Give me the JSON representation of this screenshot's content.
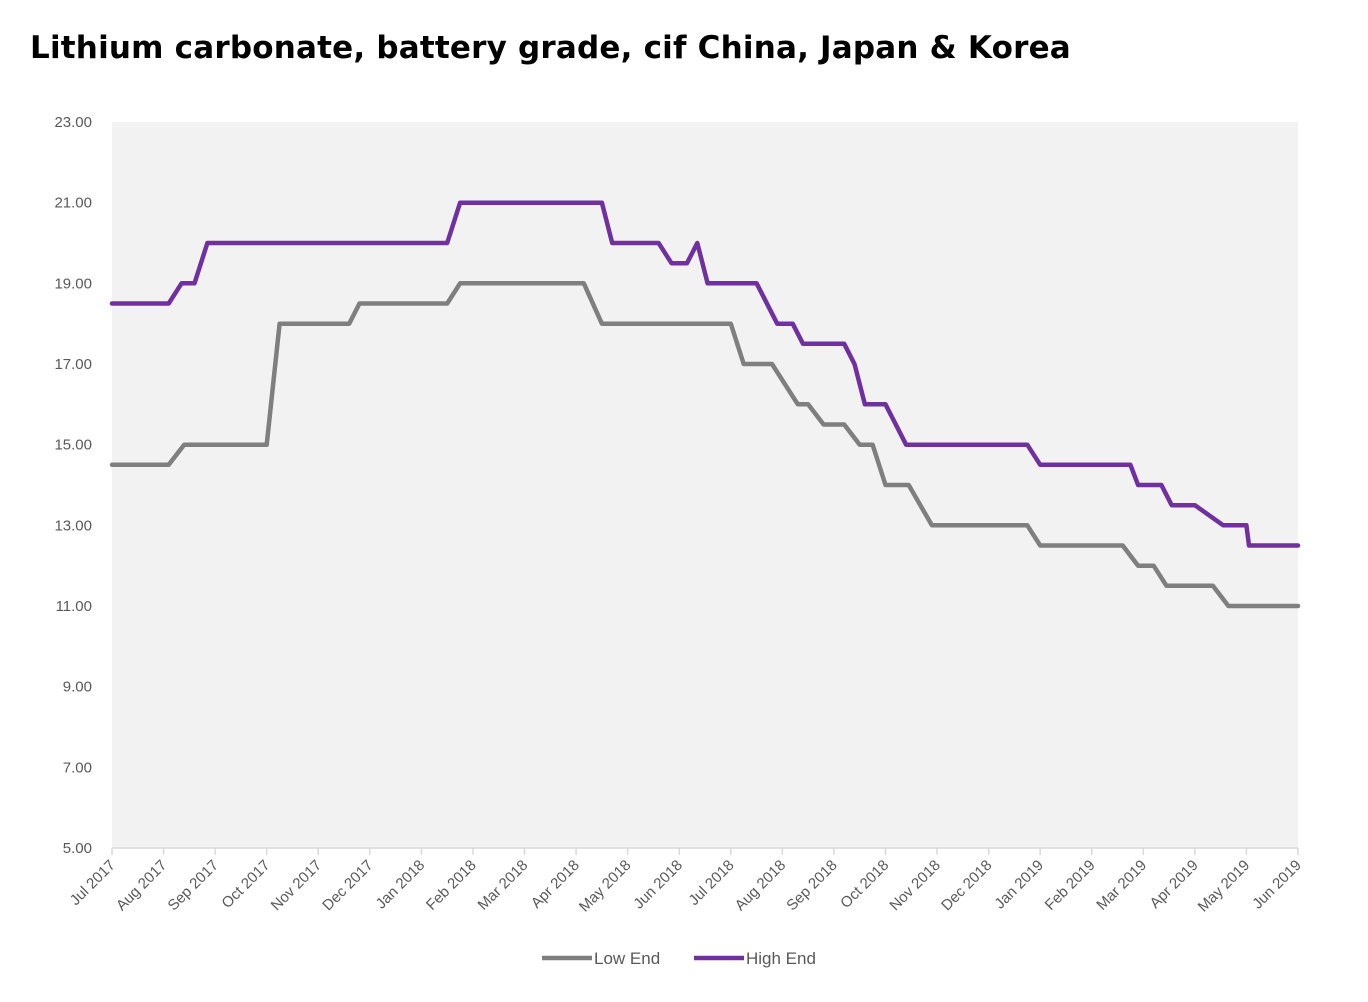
{
  "chart_data": {
    "type": "line",
    "title": "Lithium carbonate, battery grade, cif China, Japan & Korea",
    "xlabel": "",
    "ylabel": "",
    "ylim": [
      5,
      23
    ],
    "yticks": [
      "5.00",
      "7.00",
      "9.00",
      "11.00",
      "13.00",
      "15.00",
      "17.00",
      "19.00",
      "21.00",
      "23.00"
    ],
    "categories": [
      "Jul 2017",
      "Aug 2017",
      "Sep 2017",
      "Oct 2017",
      "Nov 2017",
      "Dec 2017",
      "Jan 2018",
      "Feb 2018",
      "Mar 2018",
      "Apr 2018",
      "May 2018",
      "Jun 2018",
      "Jul 2018",
      "Aug 2018",
      "Sep 2018",
      "Oct 2018",
      "Nov 2018",
      "Dec 2018",
      "Jan 2019",
      "Feb 2019",
      "Mar 2019",
      "Apr 2019",
      "May 2019",
      "Jun 2019"
    ],
    "legend_position": "bottom",
    "grid": false,
    "series": [
      {
        "name": "Low End",
        "color": "#7f7f7f",
        "x": [
          0,
          1.1,
          1.4,
          2.8,
          3.0,
          3.25,
          3.5,
          4.6,
          4.8,
          5.0,
          6.5,
          6.75,
          7.0,
          9.15,
          9.5,
          12.0,
          12.25,
          12.5,
          12.8,
          13.3,
          13.5,
          13.8,
          14.2,
          14.5,
          14.75,
          15.0,
          15.2,
          15.45,
          15.9,
          16.25,
          16.5,
          17.75,
          18.0,
          18.25,
          19.6,
          19.9,
          20.2,
          20.45,
          20.75,
          21.35,
          21.65,
          22.0,
          23.0
        ],
        "values": [
          14.5,
          14.5,
          15.0,
          15.0,
          15.0,
          18.0,
          18.0,
          18.0,
          18.5,
          18.5,
          18.5,
          19.0,
          19.0,
          19.0,
          18.0,
          18.0,
          17.0,
          17.0,
          17.0,
          16.0,
          16.0,
          15.5,
          15.5,
          15.0,
          15.0,
          14.0,
          14.0,
          14.0,
          13.0,
          13.0,
          13.0,
          13.0,
          12.5,
          12.5,
          12.5,
          12.0,
          12.0,
          11.5,
          11.5,
          11.5,
          11.0,
          11.0,
          11.0
        ]
      },
      {
        "name": "High End",
        "color": "#7030a0",
        "x": [
          0,
          1.1,
          1.35,
          1.6,
          1.85,
          3.0,
          6.5,
          6.75,
          9.5,
          9.7,
          10.6,
          10.85,
          11.15,
          11.35,
          11.55,
          12.5,
          12.9,
          13.2,
          13.4,
          13.6,
          14.2,
          14.4,
          14.6,
          15.0,
          15.4,
          15.7,
          17.75,
          18.0,
          18.25,
          19.75,
          19.9,
          20.35,
          20.55,
          21.0,
          21.55,
          22.0,
          22.05,
          23.0
        ],
        "values": [
          18.5,
          18.5,
          19.0,
          19.0,
          20.0,
          20.0,
          20.0,
          21.0,
          21.0,
          20.0,
          20.0,
          19.5,
          19.5,
          20.0,
          19.0,
          19.0,
          18.0,
          18.0,
          17.5,
          17.5,
          17.5,
          17.0,
          16.0,
          16.0,
          15.0,
          15.0,
          15.0,
          14.5,
          14.5,
          14.5,
          14.0,
          14.0,
          13.5,
          13.5,
          13.0,
          13.0,
          12.5,
          12.5
        ]
      }
    ]
  }
}
